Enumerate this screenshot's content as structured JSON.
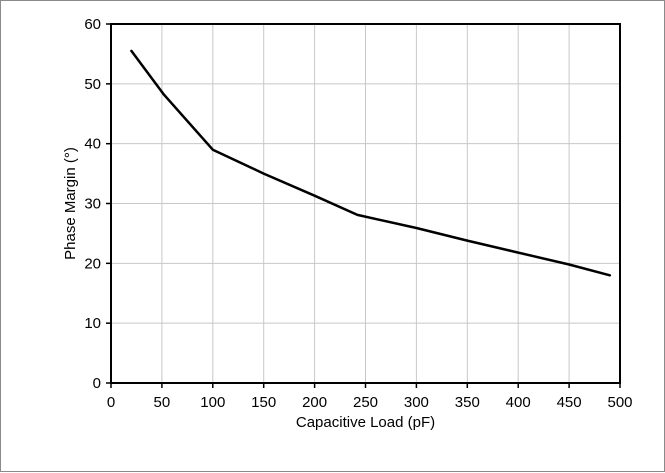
{
  "chart_data": {
    "type": "line",
    "xlabel": "Capacitive Load (pF)",
    "ylabel": "Phase Margin (°)",
    "xlim": [
      0,
      500
    ],
    "ylim": [
      0,
      60
    ],
    "x_ticks": [
      0,
      50,
      100,
      150,
      200,
      250,
      300,
      350,
      400,
      450,
      500
    ],
    "y_ticks": [
      0,
      10,
      20,
      30,
      40,
      50,
      60
    ],
    "grid": true,
    "legend": "none",
    "series": [
      {
        "color": "#000000",
        "points": [
          [
            20,
            55.5
          ],
          [
            52,
            48.2
          ],
          [
            100,
            39.0
          ],
          [
            150,
            35.0
          ],
          [
            200,
            31.3
          ],
          [
            242,
            28.1
          ],
          [
            300,
            25.9
          ],
          [
            350,
            23.8
          ],
          [
            400,
            21.8
          ],
          [
            450,
            19.8
          ],
          [
            490,
            18.0
          ]
        ]
      }
    ],
    "colors": {
      "line": "#000000",
      "grid": "#c8c8c8",
      "axis": "#000000",
      "frame_border": "#8a8a8a"
    }
  }
}
